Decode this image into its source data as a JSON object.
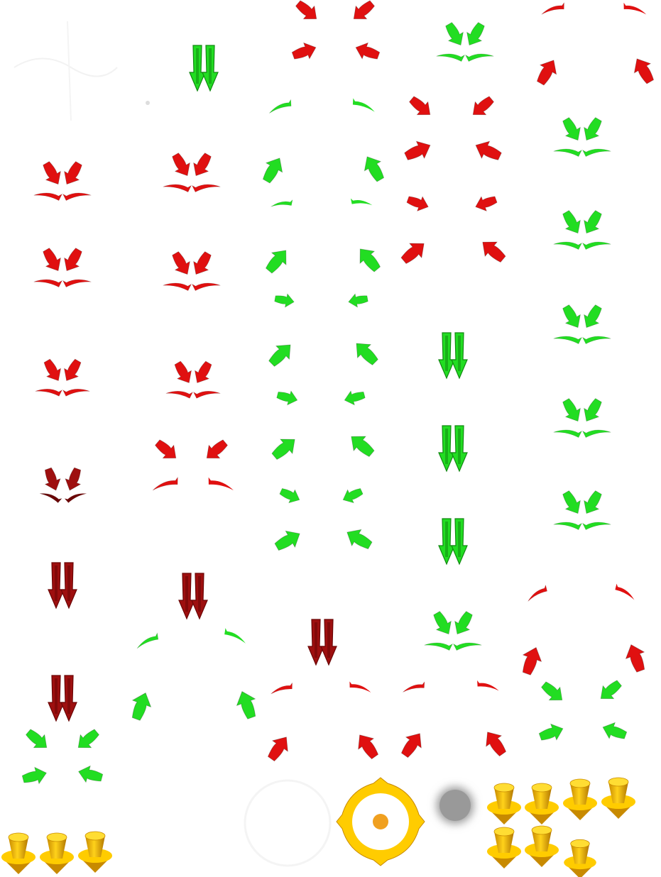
{
  "sheet": {
    "name": "sprite-atlas",
    "palette": {
      "red": "#e01010",
      "red_dark": "#9e0f0f",
      "red_deep": "#6a0606",
      "green": "#22dd22",
      "green_dark": "#118811",
      "gold": "#ffcc00",
      "gold_dark": "#c88a00",
      "orange_dot": "#f0a020",
      "gray_blur": "#999999"
    },
    "icons": [
      "arrow-cluster-icon",
      "double-down-arrow-icon",
      "converging-arrows-icon",
      "diverging-arrows-icon",
      "crosshair-target-icon",
      "cone-marker-icon",
      "gray-shadow-icon"
    ]
  }
}
